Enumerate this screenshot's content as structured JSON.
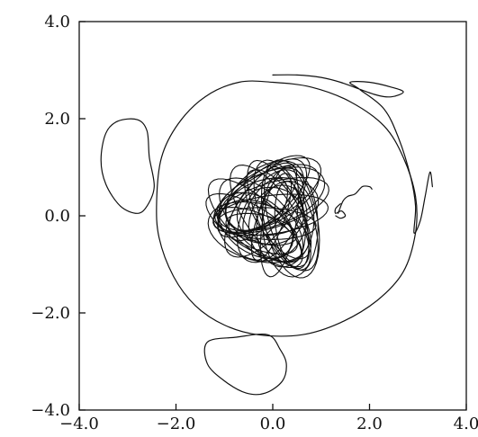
{
  "chart_data": {
    "type": "line",
    "title": "",
    "xlabel": "",
    "ylabel": "",
    "xlim": [
      -4.0,
      4.0
    ],
    "ylim": [
      -4.0,
      4.0
    ],
    "grid": false,
    "x_ticks": [
      -4.0,
      -2.0,
      0.0,
      2.0,
      4.0
    ],
    "y_ticks": [
      -4.0,
      -2.0,
      0.0,
      2.0,
      4.0
    ],
    "x_tick_labels": [
      "−4.0",
      "−2.0",
      "0.0",
      "2.0",
      "4.0"
    ],
    "y_tick_labels": [
      "−4.0",
      "−2.0",
      "0.0",
      "2.0",
      "4.0"
    ],
    "series": [
      {
        "style": "closed",
        "points": [
          [
            -2.4,
            0.3
          ],
          [
            -2.3,
            1.2
          ],
          [
            -1.95,
            1.9
          ],
          [
            -1.4,
            2.45
          ],
          [
            -0.7,
            2.75
          ],
          [
            0.0,
            2.75
          ],
          [
            0.8,
            2.65
          ],
          [
            1.6,
            2.35
          ],
          [
            2.3,
            1.85
          ],
          [
            2.7,
            1.2
          ],
          [
            2.95,
            0.4
          ],
          [
            2.95,
            -0.35
          ],
          [
            2.7,
            -1.15
          ],
          [
            2.15,
            -1.75
          ],
          [
            1.4,
            -2.2
          ],
          [
            0.6,
            -2.45
          ],
          [
            -0.3,
            -2.45
          ],
          [
            -1.0,
            -2.25
          ],
          [
            -1.6,
            -1.85
          ],
          [
            -2.05,
            -1.25
          ],
          [
            -2.35,
            -0.45
          ],
          [
            -2.4,
            0.3
          ]
        ]
      },
      {
        "style": "closed",
        "points": [
          [
            -2.45,
            0.6
          ],
          [
            -2.55,
            1.2
          ],
          [
            -2.6,
            1.75
          ],
          [
            -2.8,
            1.98
          ],
          [
            -3.2,
            1.95
          ],
          [
            -3.45,
            1.7
          ],
          [
            -3.55,
            1.15
          ],
          [
            -3.45,
            0.65
          ],
          [
            -3.15,
            0.2
          ],
          [
            -2.8,
            0.05
          ],
          [
            -2.6,
            0.2
          ],
          [
            -2.45,
            0.6
          ]
        ]
      },
      {
        "style": "closed",
        "points": [
          [
            -0.1,
            -2.45
          ],
          [
            -0.75,
            -2.5
          ],
          [
            -1.35,
            -2.6
          ],
          [
            -1.35,
            -3.05
          ],
          [
            -1.0,
            -3.4
          ],
          [
            -0.55,
            -3.65
          ],
          [
            -0.15,
            -3.65
          ],
          [
            0.2,
            -3.4
          ],
          [
            0.28,
            -3.05
          ],
          [
            0.15,
            -2.75
          ],
          [
            -0.1,
            -2.45
          ]
        ]
      },
      {
        "style": "open",
        "points": [
          [
            0.0,
            2.9
          ],
          [
            0.5,
            2.9
          ],
          [
            1.0,
            2.85
          ],
          [
            1.4,
            2.75
          ],
          [
            2.1,
            2.5
          ],
          [
            2.45,
            2.45
          ],
          [
            2.7,
            2.55
          ],
          [
            2.45,
            2.65
          ],
          [
            2.0,
            2.75
          ],
          [
            1.6,
            2.75
          ],
          [
            1.8,
            2.6
          ],
          [
            2.3,
            2.2
          ],
          [
            2.6,
            1.6
          ],
          [
            2.85,
            0.8
          ],
          [
            2.95,
            0.2
          ],
          [
            2.92,
            -0.35
          ],
          [
            3.05,
            -0.1
          ],
          [
            3.15,
            0.4
          ],
          [
            3.25,
            0.9
          ],
          [
            3.3,
            0.6
          ]
        ]
      },
      {
        "style": "open",
        "points": [
          [
            1.35,
            0.05
          ],
          [
            1.45,
            0.3
          ],
          [
            1.55,
            0.4
          ],
          [
            1.7,
            0.45
          ],
          [
            1.85,
            0.6
          ],
          [
            2.0,
            0.6
          ],
          [
            2.05,
            0.55
          ]
        ]
      },
      {
        "style": "open",
        "points": [
          [
            1.4,
            0.25
          ],
          [
            1.3,
            0.15
          ],
          [
            1.3,
            0.05
          ],
          [
            1.42,
            0.1
          ],
          [
            1.5,
            0.0
          ],
          [
            1.4,
            -0.05
          ],
          [
            1.3,
            0.0
          ]
        ]
      },
      {
        "style": "tangle",
        "center": [
          -0.05,
          0.0
        ],
        "radius": 1.25,
        "loops": 34
      }
    ]
  }
}
